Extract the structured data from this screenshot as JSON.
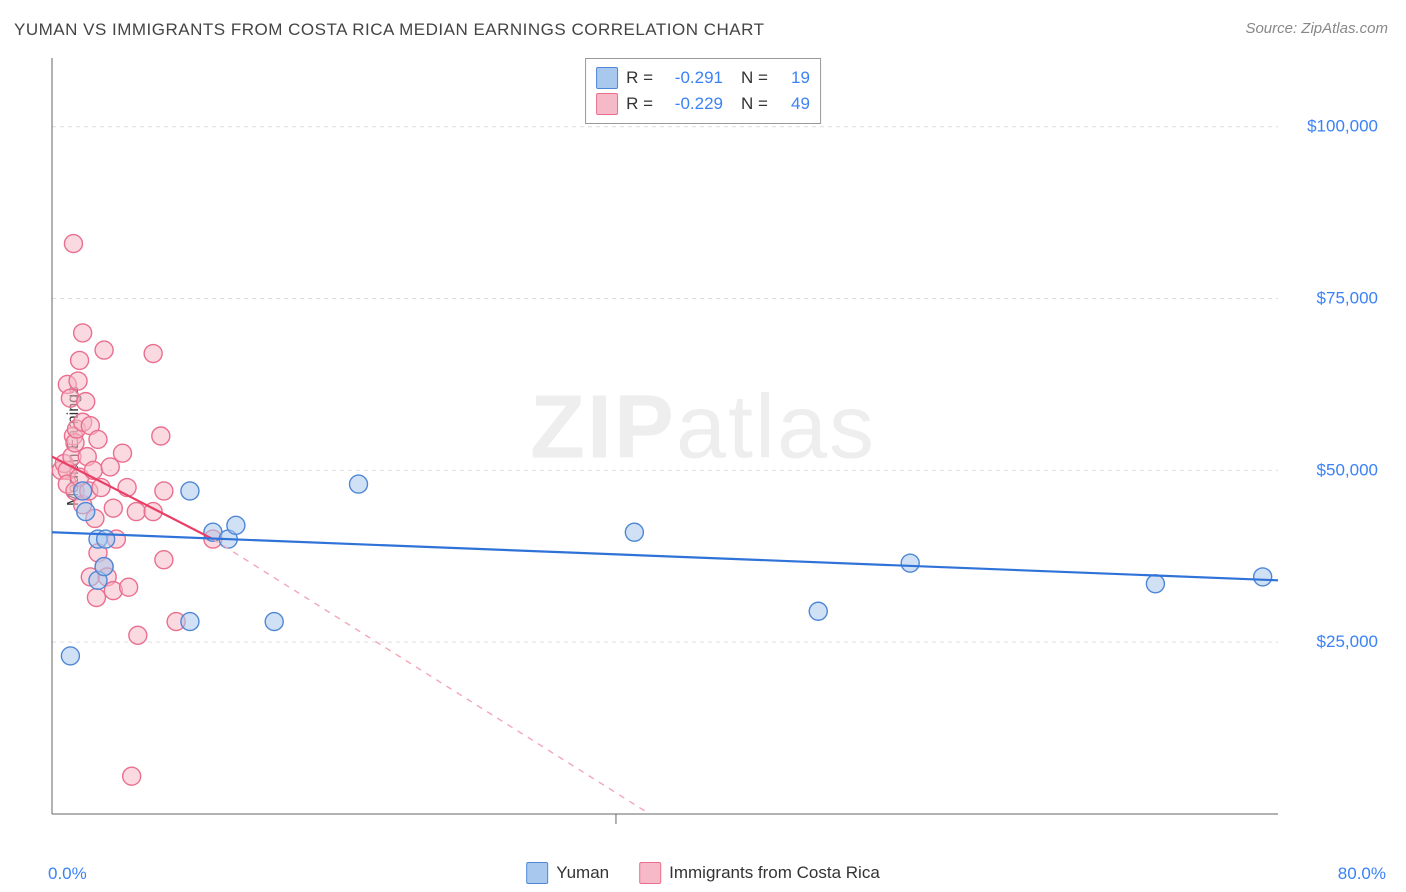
{
  "title": "YUMAN VS IMMIGRANTS FROM COSTA RICA MEDIAN EARNINGS CORRELATION CHART",
  "source": "Source: ZipAtlas.com",
  "watermark_a": "ZIP",
  "watermark_b": "atlas",
  "ylabel": "Median Earnings",
  "chart": {
    "type": "scatter-regression",
    "x_domain": [
      0,
      80
    ],
    "y_domain": [
      0,
      110000
    ],
    "x_ticks_labels": {
      "min": "0.0%",
      "max": "80.0%"
    },
    "y_ticks": [
      25000,
      50000,
      75000,
      100000
    ],
    "y_tick_labels": [
      "$25,000",
      "$50,000",
      "$75,000",
      "$100,000"
    ],
    "grid_color": "#dddddd",
    "axis_color": "#666666",
    "tick_label_color": "#3b82f6",
    "background": "#ffffff",
    "marker_radius": 9,
    "marker_opacity": 0.55,
    "series": [
      {
        "name": "Yuman",
        "color_fill": "#a9c8ed",
        "color_stroke": "#4f87d6",
        "r": "-0.291",
        "n": "19",
        "reg_line": {
          "x1": 0,
          "y1": 41000,
          "x2": 80,
          "y2": 34000,
          "dash": false,
          "width": 2.2,
          "color": "#2f72d8"
        },
        "points": [
          [
            1.2,
            23000
          ],
          [
            2.0,
            47000
          ],
          [
            2.2,
            44000
          ],
          [
            3.0,
            40000
          ],
          [
            3.0,
            34000
          ],
          [
            3.4,
            36000
          ],
          [
            3.5,
            40000
          ],
          [
            9.0,
            28000
          ],
          [
            9.0,
            47000
          ],
          [
            10.5,
            41000
          ],
          [
            11.5,
            40000
          ],
          [
            12.0,
            42000
          ],
          [
            14.5,
            28000
          ],
          [
            20.0,
            48000
          ],
          [
            38.0,
            41000
          ],
          [
            50.0,
            29500
          ],
          [
            56.0,
            36500
          ],
          [
            72.0,
            33500
          ],
          [
            79.0,
            34500
          ]
        ]
      },
      {
        "name": "Immigrants from Costa Rica",
        "color_fill": "#f6b9c7",
        "color_stroke": "#ea6f8e",
        "r": "-0.229",
        "n": "49",
        "reg_line": {
          "x1": 0,
          "y1": 52000,
          "x2": 10.5,
          "y2": 40000,
          "dash": false,
          "width": 2.2,
          "color": "#ea3e66"
        },
        "reg_line_ext": {
          "x1": 10.5,
          "y1": 40000,
          "x2": 39,
          "y2": 0,
          "dash": true,
          "width": 1.4,
          "color": "#f3a7b8"
        },
        "points": [
          [
            0.6,
            50000
          ],
          [
            0.8,
            51000
          ],
          [
            1.0,
            62500
          ],
          [
            1.0,
            50000
          ],
          [
            1.0,
            48000
          ],
          [
            1.2,
            60500
          ],
          [
            1.3,
            52000
          ],
          [
            1.4,
            55000
          ],
          [
            1.4,
            83000
          ],
          [
            1.5,
            54000
          ],
          [
            1.5,
            47000
          ],
          [
            1.6,
            56000
          ],
          [
            1.7,
            63000
          ],
          [
            1.8,
            66000
          ],
          [
            1.8,
            49000
          ],
          [
            2.0,
            57000
          ],
          [
            2.0,
            70000
          ],
          [
            2.0,
            45000
          ],
          [
            2.2,
            60000
          ],
          [
            2.3,
            52000
          ],
          [
            2.4,
            47000
          ],
          [
            2.5,
            56500
          ],
          [
            2.5,
            34500
          ],
          [
            2.7,
            50000
          ],
          [
            2.8,
            43000
          ],
          [
            2.9,
            31500
          ],
          [
            3.0,
            54500
          ],
          [
            3.0,
            38000
          ],
          [
            3.2,
            47500
          ],
          [
            3.4,
            67500
          ],
          [
            3.4,
            36000
          ],
          [
            3.6,
            34500
          ],
          [
            3.8,
            50500
          ],
          [
            4.0,
            44500
          ],
          [
            4.0,
            32500
          ],
          [
            4.2,
            40000
          ],
          [
            4.6,
            52500
          ],
          [
            4.9,
            47500
          ],
          [
            5.0,
            33000
          ],
          [
            5.2,
            5500
          ],
          [
            5.5,
            44000
          ],
          [
            5.6,
            26000
          ],
          [
            6.6,
            67000
          ],
          [
            6.6,
            44000
          ],
          [
            7.1,
            55000
          ],
          [
            7.3,
            37000
          ],
          [
            7.3,
            47000
          ],
          [
            8.1,
            28000
          ],
          [
            10.5,
            40000
          ]
        ]
      }
    ]
  },
  "legend_bottom": [
    {
      "swatch_fill": "#a9c8ed",
      "swatch_stroke": "#4f87d6",
      "label": "Yuman"
    },
    {
      "swatch_fill": "#f6b9c7",
      "swatch_stroke": "#ea6f8e",
      "label": "Immigrants from Costa Rica"
    }
  ],
  "legend_top_labels": {
    "r_label": "R  =",
    "n_label": "N  ="
  },
  "value_color": "#3b82f6"
}
